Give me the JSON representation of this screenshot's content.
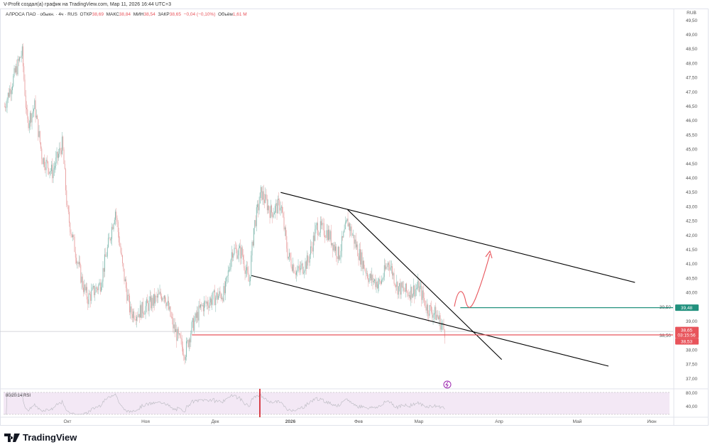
{
  "attribution": "V-Profit создал(а) график на TradingView.com, Мар 11, 2026 16:44 UTC+3",
  "legend": {
    "symbol": "АЛРОСА ПАО · обыкн. · 4ч · RUS",
    "open_label": "ОТКР",
    "open": "38,69",
    "high_label": "МАКС",
    "high": "38,84",
    "low_label": "МИН",
    "low": "38,54",
    "close_label": "ЗАКР",
    "close": "38,65",
    "change": "−0,04 (−0,10%)",
    "volume_label": "Объём",
    "volume": "1,61 M"
  },
  "currency": "RUB",
  "colors": {
    "up": "#26a69a",
    "down": "#ef5350",
    "candle_up": "#7fb8ae",
    "candle_down": "#e8a0a0",
    "rsi_bg": "#f3e8f5",
    "green_line": "#22917e",
    "red_line": "#e8545b"
  },
  "chart_data": {
    "type": "candlestick",
    "price_axis_ticks": [
      "49,50",
      "49,00",
      "48,50",
      "48,00",
      "47,50",
      "47,00",
      "46,50",
      "46,00",
      "45,50",
      "45,00",
      "44,50",
      "44,00",
      "43,50",
      "43,00",
      "42,50",
      "42,00",
      "41,50",
      "41,00",
      "40,50",
      "40,00",
      "39,50",
      "39,00",
      "38,50",
      "38,00",
      "37,50",
      "37,00"
    ],
    "time_axis_ticks": [
      {
        "label": "Окт",
        "date": "2025-10-01"
      },
      {
        "label": "Ноя",
        "date": "2025-11-01"
      },
      {
        "label": "Дек",
        "date": "2025-12-01"
      },
      {
        "label": "2026",
        "date": "2026-01-01"
      },
      {
        "label": "Фев",
        "date": "2026-02-01"
      },
      {
        "label": "Мар",
        "date": "2026-03-01"
      },
      {
        "label": "Апр",
        "date": "2026-04-01"
      },
      {
        "label": "Май",
        "date": "2026-05-01"
      },
      {
        "label": "Июн",
        "date": "2026-06-01"
      }
    ],
    "ylim": [
      37.0,
      49.5
    ],
    "close_path": [
      [
        "2025-09-06",
        46.5
      ],
      [
        "2025-09-10",
        47.6
      ],
      [
        "2025-09-13",
        48.4
      ],
      [
        "2025-09-15",
        45.9
      ],
      [
        "2025-09-18",
        46.5
      ],
      [
        "2025-09-21",
        44.7
      ],
      [
        "2025-09-25",
        44.2
      ],
      [
        "2025-09-29",
        45.2
      ],
      [
        "2025-10-01",
        42.8
      ],
      [
        "2025-10-04",
        41.5
      ],
      [
        "2025-10-07",
        40.3
      ],
      [
        "2025-10-09",
        39.8
      ],
      [
        "2025-10-14",
        40.3
      ],
      [
        "2025-10-18",
        42.0
      ],
      [
        "2025-10-20",
        42.9
      ],
      [
        "2025-10-23",
        40.8
      ],
      [
        "2025-10-26",
        39.3
      ],
      [
        "2025-10-29",
        39.3
      ],
      [
        "2025-11-01",
        39.5
      ],
      [
        "2025-11-06",
        39.8
      ],
      [
        "2025-11-09",
        40.0
      ],
      [
        "2025-11-13",
        38.8
      ],
      [
        "2025-11-18",
        37.9
      ],
      [
        "2025-11-21",
        38.8
      ],
      [
        "2025-11-25",
        39.5
      ],
      [
        "2025-11-30",
        39.8
      ],
      [
        "2025-12-05",
        40.0
      ],
      [
        "2025-12-08",
        41.5
      ],
      [
        "2025-12-12",
        41.4
      ],
      [
        "2025-12-15",
        40.3
      ],
      [
        "2025-12-17",
        42.3
      ],
      [
        "2025-12-20",
        43.5
      ],
      [
        "2025-12-24",
        42.8
      ],
      [
        "2025-12-28",
        43.1
      ],
      [
        "2025-12-31",
        41.3
      ],
      [
        "2026-01-04",
        40.7
      ],
      [
        "2026-01-09",
        41.1
      ],
      [
        "2026-01-13",
        42.3
      ],
      [
        "2026-01-18",
        42.1
      ],
      [
        "2026-01-23",
        41.3
      ],
      [
        "2026-01-27",
        42.5
      ],
      [
        "2026-02-01",
        41.4
      ],
      [
        "2026-02-06",
        40.5
      ],
      [
        "2026-02-11",
        40.3
      ],
      [
        "2026-02-15",
        41.1
      ],
      [
        "2026-02-19",
        40.2
      ],
      [
        "2026-02-24",
        40.0
      ],
      [
        "2026-03-01",
        40.2
      ],
      [
        "2026-03-04",
        39.5
      ],
      [
        "2026-03-08",
        39.2
      ],
      [
        "2026-03-11",
        38.65
      ]
    ],
    "price_labels": [
      {
        "text": "39,48",
        "price": 39.48,
        "color": "#22917e"
      },
      {
        "text": "38,65",
        "sub": "03:15:56",
        "price": 38.65,
        "color": "#e8545b"
      },
      {
        "text": "38,53",
        "price": 38.53,
        "color": "#e8545b"
      }
    ],
    "drawings": [
      {
        "kind": "trendline",
        "from": [
          "2025-12-28",
          43.5
        ],
        "to": [
          "2026-05-25",
          40.36
        ],
        "color": "#000000"
      },
      {
        "kind": "trendline",
        "from": [
          "2025-12-16",
          40.6
        ],
        "to": [
          "2026-05-14",
          37.44
        ],
        "color": "#000000"
      },
      {
        "kind": "trendline",
        "from": [
          "2026-01-27",
          42.9
        ],
        "to": [
          "2026-04-02",
          37.67
        ],
        "color": "#000000"
      },
      {
        "kind": "horizontal",
        "from": "2026-03-17",
        "price": 39.48,
        "color": "#22917e"
      },
      {
        "kind": "horizontal",
        "from": "2025-11-21",
        "price": 38.53,
        "color": "#e8545b"
      },
      {
        "kind": "current_price_line",
        "price": 38.65,
        "color": "#b2b5be"
      }
    ],
    "rsi": {
      "label": "80/20 14 RSI",
      "levels": [
        "80,00",
        "40,00"
      ]
    }
  },
  "footer": {
    "brand": "TradingView"
  }
}
